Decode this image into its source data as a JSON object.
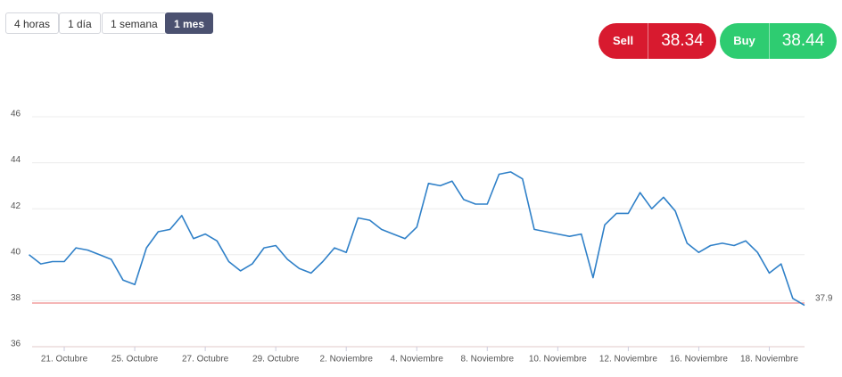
{
  "ui": {
    "ranges": [
      "4 horas",
      "1 día",
      "1 semana",
      "1 mes"
    ],
    "sell": {
      "label": "Sell",
      "price": 38.34
    },
    "buy": {
      "label": "Buy",
      "price": 38.44
    }
  },
  "chart_data": {
    "type": "line",
    "categories": [
      null,
      null,
      null,
      "21. Octubre",
      null,
      null,
      null,
      null,
      null,
      "25. Octubre",
      null,
      null,
      null,
      null,
      null,
      "27. Octubre",
      null,
      null,
      null,
      null,
      null,
      "29. Octubre",
      null,
      null,
      null,
      null,
      null,
      "2. Noviembre",
      null,
      null,
      null,
      null,
      null,
      "4. Noviembre",
      null,
      null,
      null,
      null,
      null,
      "8. Noviembre",
      null,
      null,
      null,
      null,
      null,
      "10. Noviembre",
      null,
      null,
      null,
      null,
      null,
      "12. Noviembre",
      null,
      null,
      null,
      null,
      null,
      "16. Noviembre",
      null,
      null,
      null,
      null,
      null,
      "18. Noviembre",
      null,
      null,
      null
    ],
    "values": [
      40.0,
      39.6,
      39.7,
      39.7,
      40.3,
      40.2,
      40.0,
      39.8,
      38.9,
      38.7,
      40.3,
      41.0,
      41.1,
      41.7,
      40.7,
      40.9,
      40.6,
      39.7,
      39.3,
      39.6,
      40.3,
      40.4,
      39.8,
      39.4,
      39.2,
      39.7,
      40.3,
      40.1,
      41.6,
      41.5,
      41.1,
      40.9,
      40.7,
      41.2,
      43.1,
      43.0,
      43.2,
      42.4,
      42.2,
      42.2,
      43.5,
      43.6,
      43.3,
      41.1,
      41.0,
      40.9,
      40.8,
      40.9,
      39.0,
      41.3,
      41.8,
      41.8,
      42.7,
      42.0,
      42.5,
      41.9,
      40.5,
      40.1,
      40.4,
      40.5,
      40.4,
      40.6,
      40.1,
      39.2,
      39.6,
      38.1,
      37.8
    ],
    "color": "#2f80c8",
    "ylim": [
      36,
      46
    ],
    "yticks": [
      36,
      38,
      40,
      42,
      44,
      46
    ],
    "grid": true,
    "reference_line": {
      "value": 37.9,
      "color": "#ef8a8a"
    }
  }
}
